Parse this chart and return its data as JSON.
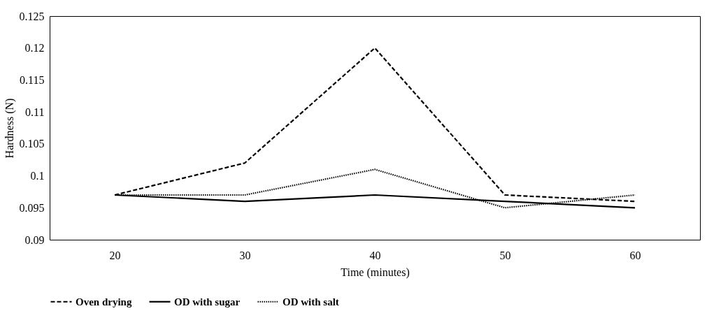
{
  "chart_data": {
    "type": "line",
    "xlabel": "Time (minutes)",
    "ylabel": "Hardness (N)",
    "categories": [
      "20",
      "30",
      "40",
      "50",
      "60"
    ],
    "series": [
      {
        "name": "Oven drying",
        "color": "#000000",
        "line_style": "dashed",
        "values": [
          0.097,
          0.102,
          0.12,
          0.097,
          0.096
        ]
      },
      {
        "name": "OD with sugar",
        "color": "#000000",
        "line_style": "solid",
        "values": [
          0.097,
          0.096,
          0.097,
          0.096,
          0.095
        ]
      },
      {
        "name": "OD with salt",
        "color": "#000000",
        "line_style": "dotted",
        "values": [
          0.097,
          0.097,
          0.101,
          0.095,
          0.097
        ]
      }
    ],
    "ylim": [
      0.09,
      0.125
    ],
    "yticks": [
      0.09,
      0.095,
      0.1,
      0.105,
      0.11,
      0.115,
      0.12,
      0.125
    ],
    "grid": false,
    "legend": "bottom",
    "marker": "none"
  }
}
